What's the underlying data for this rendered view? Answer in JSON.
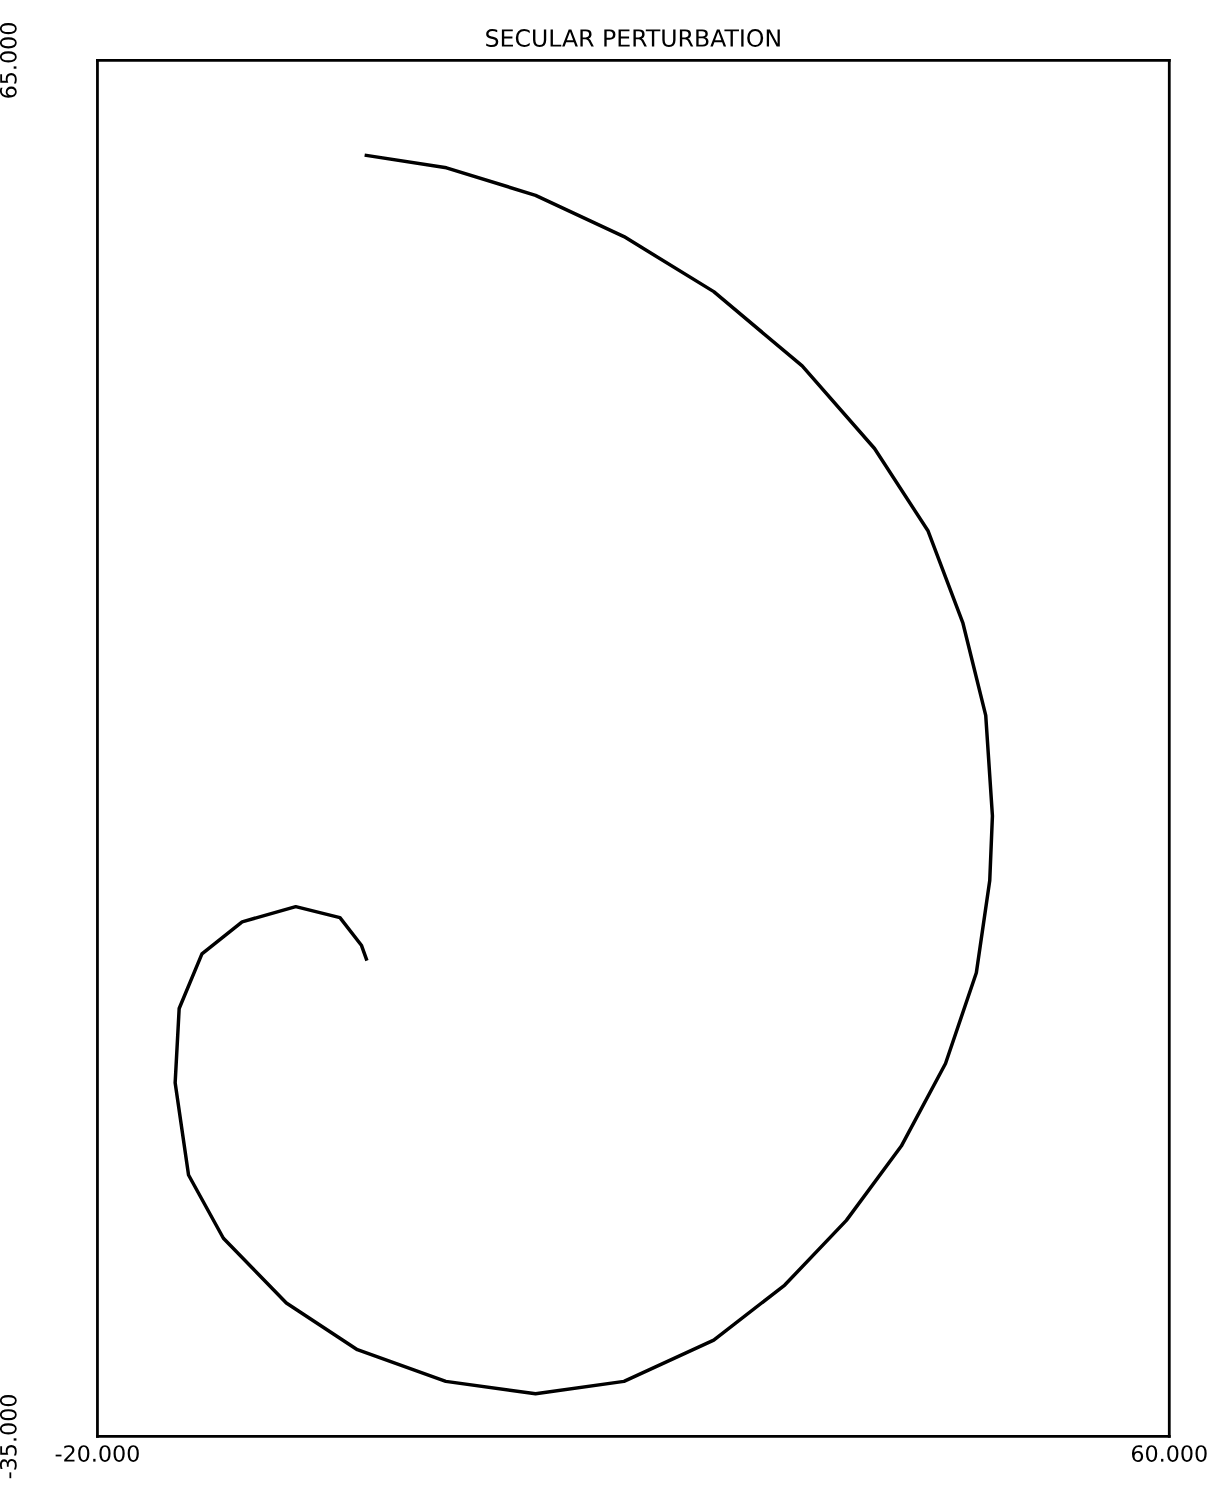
{
  "chart_data": {
    "type": "line",
    "title": "SECULAR PERTURBATION",
    "x": [
      0.07,
      6.05,
      12.7,
      19.3,
      26.0,
      32.6,
      38.0,
      42.0,
      44.6,
      46.3,
      46.8,
      46.6,
      45.6,
      43.3,
      40.0,
      35.9,
      31.3,
      26.0,
      19.3,
      12.7,
      6.0,
      -0.6,
      -5.9,
      -10.6,
      -13.2,
      -14.2,
      -13.9,
      -12.2,
      -9.2,
      -5.2,
      -1.9,
      -0.3,
      0.07
    ],
    "series": [
      {
        "color": "#000000",
        "values": [
          58.1,
          57.2,
          55.2,
          52.2,
          48.2,
          42.8,
          36.8,
          30.8,
          24.1,
          17.4,
          10.1,
          5.4,
          -1.3,
          -7.9,
          -13.9,
          -19.3,
          -24.0,
          -28.0,
          -31.0,
          -31.9,
          -31.0,
          -28.7,
          -25.3,
          -20.6,
          -16.0,
          -9.3,
          -3.9,
          0.07,
          2.4,
          3.5,
          2.7,
          0.7,
          -0.3
        ]
      }
    ],
    "xlim": [
      -20,
      60
    ],
    "ylim": [
      -35,
      65
    ],
    "xticks": [
      {
        "value": -20,
        "label": "-20.000"
      },
      {
        "value": 60,
        "label": "60.000"
      }
    ],
    "yticks": [
      {
        "value": -35,
        "label": "-35.000"
      },
      {
        "value": 65,
        "label": "65.000"
      }
    ],
    "marker": "none",
    "line_style": "solid"
  }
}
